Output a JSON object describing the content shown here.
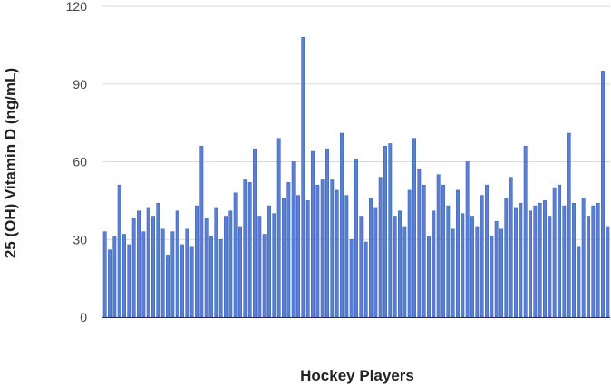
{
  "chart_data": {
    "type": "bar",
    "title": "",
    "xlabel": "Hockey Players",
    "ylabel": "25 (OH) Vitamin D (ng/mL)",
    "ylim": [
      0,
      120
    ],
    "yticks": [
      0,
      30,
      60,
      90,
      120
    ],
    "grid": "horizontal",
    "legend": "none",
    "bar_color": "#5b7fd3",
    "values": [
      33,
      26,
      31,
      51,
      32,
      28,
      38,
      41,
      33,
      42,
      39,
      44,
      34,
      24,
      33,
      41,
      28,
      34,
      27,
      43,
      66,
      38,
      31,
      42,
      30,
      39,
      41,
      48,
      35,
      53,
      52,
      65,
      39,
      32,
      43,
      40,
      69,
      46,
      52,
      60,
      47,
      108,
      45,
      64,
      51,
      53,
      65,
      53,
      49,
      71,
      47,
      30,
      61,
      39,
      29,
      46,
      42,
      54,
      66,
      67,
      39,
      41,
      35,
      49,
      69,
      57,
      51,
      31,
      41,
      55,
      51,
      43,
      34,
      49,
      40,
      60,
      39,
      35,
      47,
      51,
      31,
      37,
      34,
      46,
      54,
      42,
      44,
      66,
      41,
      43,
      44,
      45,
      39,
      50,
      51,
      43,
      71,
      44,
      27,
      46,
      39,
      43,
      44,
      95,
      35
    ]
  }
}
